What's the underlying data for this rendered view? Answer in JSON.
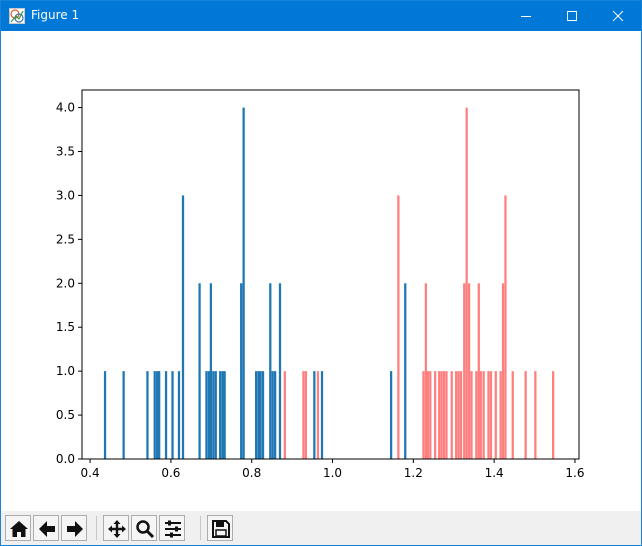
{
  "window": {
    "title": "Figure 1"
  },
  "colors": {
    "series_blue": "#1f77b4",
    "series_red": "#ff7f7f",
    "titlebar": "#0078d7"
  },
  "toolbar": {
    "buttons": [
      {
        "name": "home-button",
        "icon": "home-icon"
      },
      {
        "name": "back-button",
        "icon": "arrow-left-icon"
      },
      {
        "name": "forward-button",
        "icon": "arrow-right-icon"
      },
      {
        "name": "pan-button",
        "icon": "move-icon"
      },
      {
        "name": "zoom-button",
        "icon": "magnifier-icon"
      },
      {
        "name": "subplots-button",
        "icon": "sliders-icon"
      },
      {
        "name": "save-button",
        "icon": "floppy-icon"
      }
    ]
  },
  "chart_data": {
    "type": "bar",
    "title": "",
    "xlabel": "",
    "ylabel": "",
    "xlim": [
      0.38,
      1.61
    ],
    "ylim": [
      0,
      4.2
    ],
    "xticks": [
      "0.4",
      "0.6",
      "0.8",
      "1.0",
      "1.2",
      "1.4",
      "1.6"
    ],
    "yticks": [
      "0.0",
      "0.5",
      "1.0",
      "1.5",
      "2.0",
      "2.5",
      "3.0",
      "3.5",
      "4.0"
    ],
    "grid": false,
    "series": [
      {
        "color": "#1f77b4",
        "bin_width": 0.0056,
        "bins": [
          [
            0.437,
            1
          ],
          [
            0.483,
            1
          ],
          [
            0.542,
            1
          ],
          [
            0.56,
            1
          ],
          [
            0.566,
            1
          ],
          [
            0.571,
            1
          ],
          [
            0.588,
            1
          ],
          [
            0.604,
            1
          ],
          [
            0.62,
            1
          ],
          [
            0.63,
            3
          ],
          [
            0.671,
            2
          ],
          [
            0.688,
            1
          ],
          [
            0.694,
            1
          ],
          [
            0.699,
            2
          ],
          [
            0.705,
            1
          ],
          [
            0.711,
            1
          ],
          [
            0.722,
            1
          ],
          [
            0.728,
            1
          ],
          [
            0.733,
            1
          ],
          [
            0.774,
            2
          ],
          [
            0.78,
            4
          ],
          [
            0.811,
            1
          ],
          [
            0.817,
            1
          ],
          [
            0.822,
            1
          ],
          [
            0.828,
            1
          ],
          [
            0.846,
            2
          ],
          [
            0.852,
            1
          ],
          [
            0.858,
            1
          ],
          [
            0.87,
            2
          ],
          [
            0.955,
            1
          ],
          [
            0.974,
            1
          ],
          [
            1.145,
            1
          ],
          [
            1.18,
            2
          ]
        ]
      },
      {
        "color": "#ff7f7f",
        "bin_width": 0.0056,
        "bins": [
          [
            0.882,
            1
          ],
          [
            0.928,
            1
          ],
          [
            0.934,
            1
          ],
          [
            0.964,
            1
          ],
          [
            1.163,
            3
          ],
          [
            1.225,
            1
          ],
          [
            1.231,
            2
          ],
          [
            1.236,
            1
          ],
          [
            1.242,
            1
          ],
          [
            1.254,
            1
          ],
          [
            1.264,
            1
          ],
          [
            1.27,
            1
          ],
          [
            1.276,
            1
          ],
          [
            1.282,
            1
          ],
          [
            1.295,
            1
          ],
          [
            1.306,
            1
          ],
          [
            1.312,
            1
          ],
          [
            1.318,
            1
          ],
          [
            1.326,
            2
          ],
          [
            1.332,
            4
          ],
          [
            1.338,
            2
          ],
          [
            1.344,
            1
          ],
          [
            1.356,
            1
          ],
          [
            1.362,
            2
          ],
          [
            1.367,
            1
          ],
          [
            1.374,
            1
          ],
          [
            1.386,
            1
          ],
          [
            1.392,
            1
          ],
          [
            1.404,
            1
          ],
          [
            1.416,
            1
          ],
          [
            1.422,
            2
          ],
          [
            1.428,
            3
          ],
          [
            1.446,
            1
          ],
          [
            1.478,
            1
          ],
          [
            1.502,
            1
          ],
          [
            1.546,
            1
          ]
        ]
      }
    ]
  }
}
